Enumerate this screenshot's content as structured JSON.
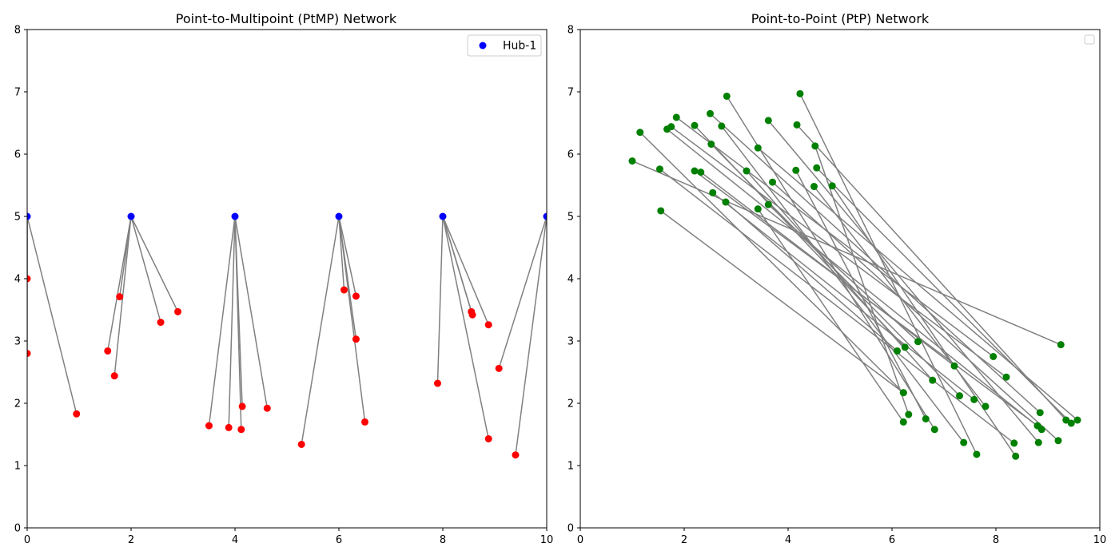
{
  "chart_data": [
    {
      "type": "scatter",
      "title": "Point-to-Multipoint (PtMP) Network",
      "xlabel": "",
      "ylabel": "",
      "xlim": [
        0,
        10
      ],
      "ylim": [
        0,
        8
      ],
      "xticks": [
        "0",
        "2",
        "4",
        "6",
        "8",
        "10"
      ],
      "yticks": [
        "0",
        "1",
        "2",
        "3",
        "4",
        "5",
        "6",
        "7",
        "8"
      ],
      "grid": false,
      "legend": {
        "placement": "top-right",
        "entries": [
          {
            "label": "Hub-1",
            "color": "#0000ff"
          }
        ]
      },
      "hubs": [
        [
          0,
          5
        ],
        [
          2,
          5
        ],
        [
          4,
          5
        ],
        [
          6,
          5
        ],
        [
          8,
          5
        ],
        [
          10,
          5
        ]
      ],
      "clients": [
        [
          0,
          4.0,
          0
        ],
        [
          0,
          2.8,
          0
        ],
        [
          0.95,
          1.83,
          0
        ],
        [
          1.55,
          2.84,
          1
        ],
        [
          1.68,
          2.44,
          1
        ],
        [
          1.78,
          3.71,
          1
        ],
        [
          2.57,
          3.3,
          1
        ],
        [
          2.9,
          3.47,
          1
        ],
        [
          3.5,
          1.64,
          2
        ],
        [
          3.88,
          1.61,
          2
        ],
        [
          4.14,
          1.95,
          2
        ],
        [
          4.12,
          1.58,
          2
        ],
        [
          4.62,
          1.92,
          2
        ],
        [
          5.28,
          1.34,
          3
        ],
        [
          6.1,
          3.82,
          3
        ],
        [
          6.33,
          3.72,
          3
        ],
        [
          6.33,
          3.03,
          3
        ],
        [
          6.5,
          1.7,
          3
        ],
        [
          7.9,
          2.32,
          4
        ],
        [
          8.55,
          3.47,
          4
        ],
        [
          8.57,
          3.42,
          4
        ],
        [
          8.88,
          3.26,
          4
        ],
        [
          8.88,
          1.43,
          4
        ],
        [
          9.08,
          2.56,
          5
        ],
        [
          9.4,
          1.17,
          5
        ]
      ],
      "colors": {
        "hub": "#0000ff",
        "client": "#ff0000",
        "link": "#808080"
      }
    },
    {
      "type": "scatter",
      "title": "Point-to-Point (PtP) Network",
      "xlabel": "",
      "ylabel": "",
      "xlim": [
        0,
        10
      ],
      "ylim": [
        0,
        8
      ],
      "xticks": [
        "0",
        "2",
        "4",
        "6",
        "8",
        "10"
      ],
      "yticks": [
        "0",
        "1",
        "2",
        "3",
        "4",
        "5",
        "6",
        "7",
        "8"
      ],
      "grid": false,
      "legend": {
        "placement": "top-right",
        "entries": []
      },
      "links": [
        [
          [
            4.23,
            6.97
          ],
          [
            7.63,
            1.18
          ]
        ],
        [
          [
            2.82,
            6.93
          ],
          [
            6.82,
            1.58
          ]
        ],
        [
          [
            1.85,
            6.59
          ],
          [
            7.95,
            2.75
          ]
        ],
        [
          [
            2.5,
            6.65
          ],
          [
            8.85,
            1.85
          ]
        ],
        [
          [
            3.62,
            6.54
          ],
          [
            8.82,
            1.37
          ]
        ],
        [
          [
            1.75,
            6.44
          ],
          [
            8.2,
            2.42
          ]
        ],
        [
          [
            2.2,
            6.46
          ],
          [
            6.25,
            2.9
          ]
        ],
        [
          [
            1.15,
            6.35
          ],
          [
            6.22,
            2.17
          ]
        ],
        [
          [
            2.72,
            6.45
          ],
          [
            7.38,
            1.37
          ]
        ],
        [
          [
            4.17,
            6.47
          ],
          [
            9.35,
            1.73
          ]
        ],
        [
          [
            1.67,
            6.4
          ],
          [
            8.88,
            1.58
          ]
        ],
        [
          [
            4.52,
            6.13
          ],
          [
            6.32,
            1.82
          ]
        ],
        [
          [
            2.52,
            6.16
          ],
          [
            7.3,
            2.12
          ]
        ],
        [
          [
            3.42,
            6.1
          ],
          [
            9.57,
            1.73
          ]
        ],
        [
          [
            1.0,
            5.89
          ],
          [
            9.25,
            2.94
          ]
        ],
        [
          [
            4.55,
            5.78
          ],
          [
            9.45,
            1.68
          ]
        ],
        [
          [
            1.53,
            5.76
          ],
          [
            8.35,
            1.36
          ]
        ],
        [
          [
            2.2,
            5.73
          ],
          [
            8.8,
            1.64
          ]
        ],
        [
          [
            2.32,
            5.71
          ],
          [
            7.2,
            2.6
          ]
        ],
        [
          [
            3.2,
            5.73
          ],
          [
            6.78,
            2.37
          ]
        ],
        [
          [
            4.15,
            5.74
          ],
          [
            6.65,
            1.75
          ]
        ],
        [
          [
            3.7,
            5.55
          ],
          [
            9.2,
            1.4
          ]
        ],
        [
          [
            4.85,
            5.49
          ],
          [
            8.38,
            1.15
          ]
        ],
        [
          [
            4.5,
            5.48
          ],
          [
            7.8,
            1.95
          ]
        ],
        [
          [
            2.55,
            5.38
          ],
          [
            7.58,
            2.06
          ]
        ],
        [
          [
            2.8,
            5.23
          ],
          [
            6.1,
            2.84
          ]
        ],
        [
          [
            3.62,
            5.19
          ],
          [
            6.5,
            2.99
          ]
        ],
        [
          [
            3.42,
            5.12
          ],
          [
            6.22,
            1.7
          ]
        ],
        [
          [
            1.55,
            5.09
          ],
          [
            6.22,
            2.17
          ]
        ]
      ],
      "colors": {
        "node": "#008000",
        "link": "#808080"
      }
    }
  ]
}
